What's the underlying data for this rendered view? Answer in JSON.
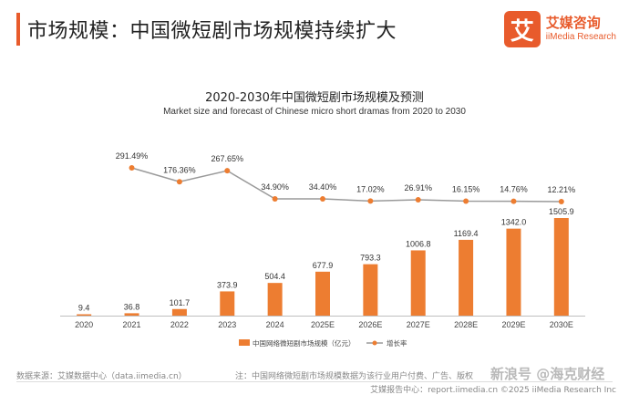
{
  "header": {
    "headline": "市场规模：中国微短剧市场规模持续扩大",
    "logo_mark": "艾",
    "logo_cn": "艾媒咨询",
    "logo_en": "iiMedia Research"
  },
  "chart_data": {
    "type": "bar",
    "title": "2020-2030年中国微短剧市场规模及预测",
    "subtitle": "Market size and forecast of Chinese micro short dramas from 2020 to 2030",
    "categories": [
      "2020",
      "2021",
      "2022",
      "2023",
      "2024",
      "2025E",
      "2026E",
      "2027E",
      "2028E",
      "2029E",
      "2030E"
    ],
    "series": [
      {
        "name": "中国网络微短剧市场规模（亿元）",
        "type": "bar",
        "color": "#ed7d31",
        "values": [
          9.4,
          36.8,
          101.7,
          373.9,
          504.4,
          677.9,
          793.3,
          1006.8,
          1169.4,
          1342.0,
          1505.9
        ],
        "labels": [
          "9.4",
          "36.8",
          "101.7",
          "373.9",
          "504.4",
          "677.9",
          "793.3",
          "1006.8",
          "1169.4",
          "1342.0",
          "1505.9"
        ]
      },
      {
        "name": "增长率",
        "type": "line",
        "color": "#ed7d31",
        "line_color": "#9a9a9a",
        "x": [
          "2021",
          "2022",
          "2023",
          "2024",
          "2025E",
          "2026E",
          "2027E",
          "2028E",
          "2029E",
          "2030E"
        ],
        "values": [
          291.49,
          176.36,
          267.65,
          34.9,
          34.4,
          17.02,
          26.91,
          16.15,
          14.76,
          12.21
        ],
        "labels": [
          "291.49%",
          "176.36%",
          "267.65%",
          "34.90%",
          "34.40%",
          "17.02%",
          "26.91%",
          "16.15%",
          "14.76%",
          "12.21%"
        ]
      }
    ],
    "legend_position": "bottom",
    "grid": false
  },
  "footer": {
    "source": "数据来源：艾媒数据中心（data.iimedia.cn）",
    "note": "注：中国网络微短剧市场规模数据为该行业用户付费、广告、版权",
    "copyright": "艾媒报告中心：report.iimedia.cn    ©2025  iiMedia Research Inc",
    "watermark": "新浪号 @海克财经"
  }
}
